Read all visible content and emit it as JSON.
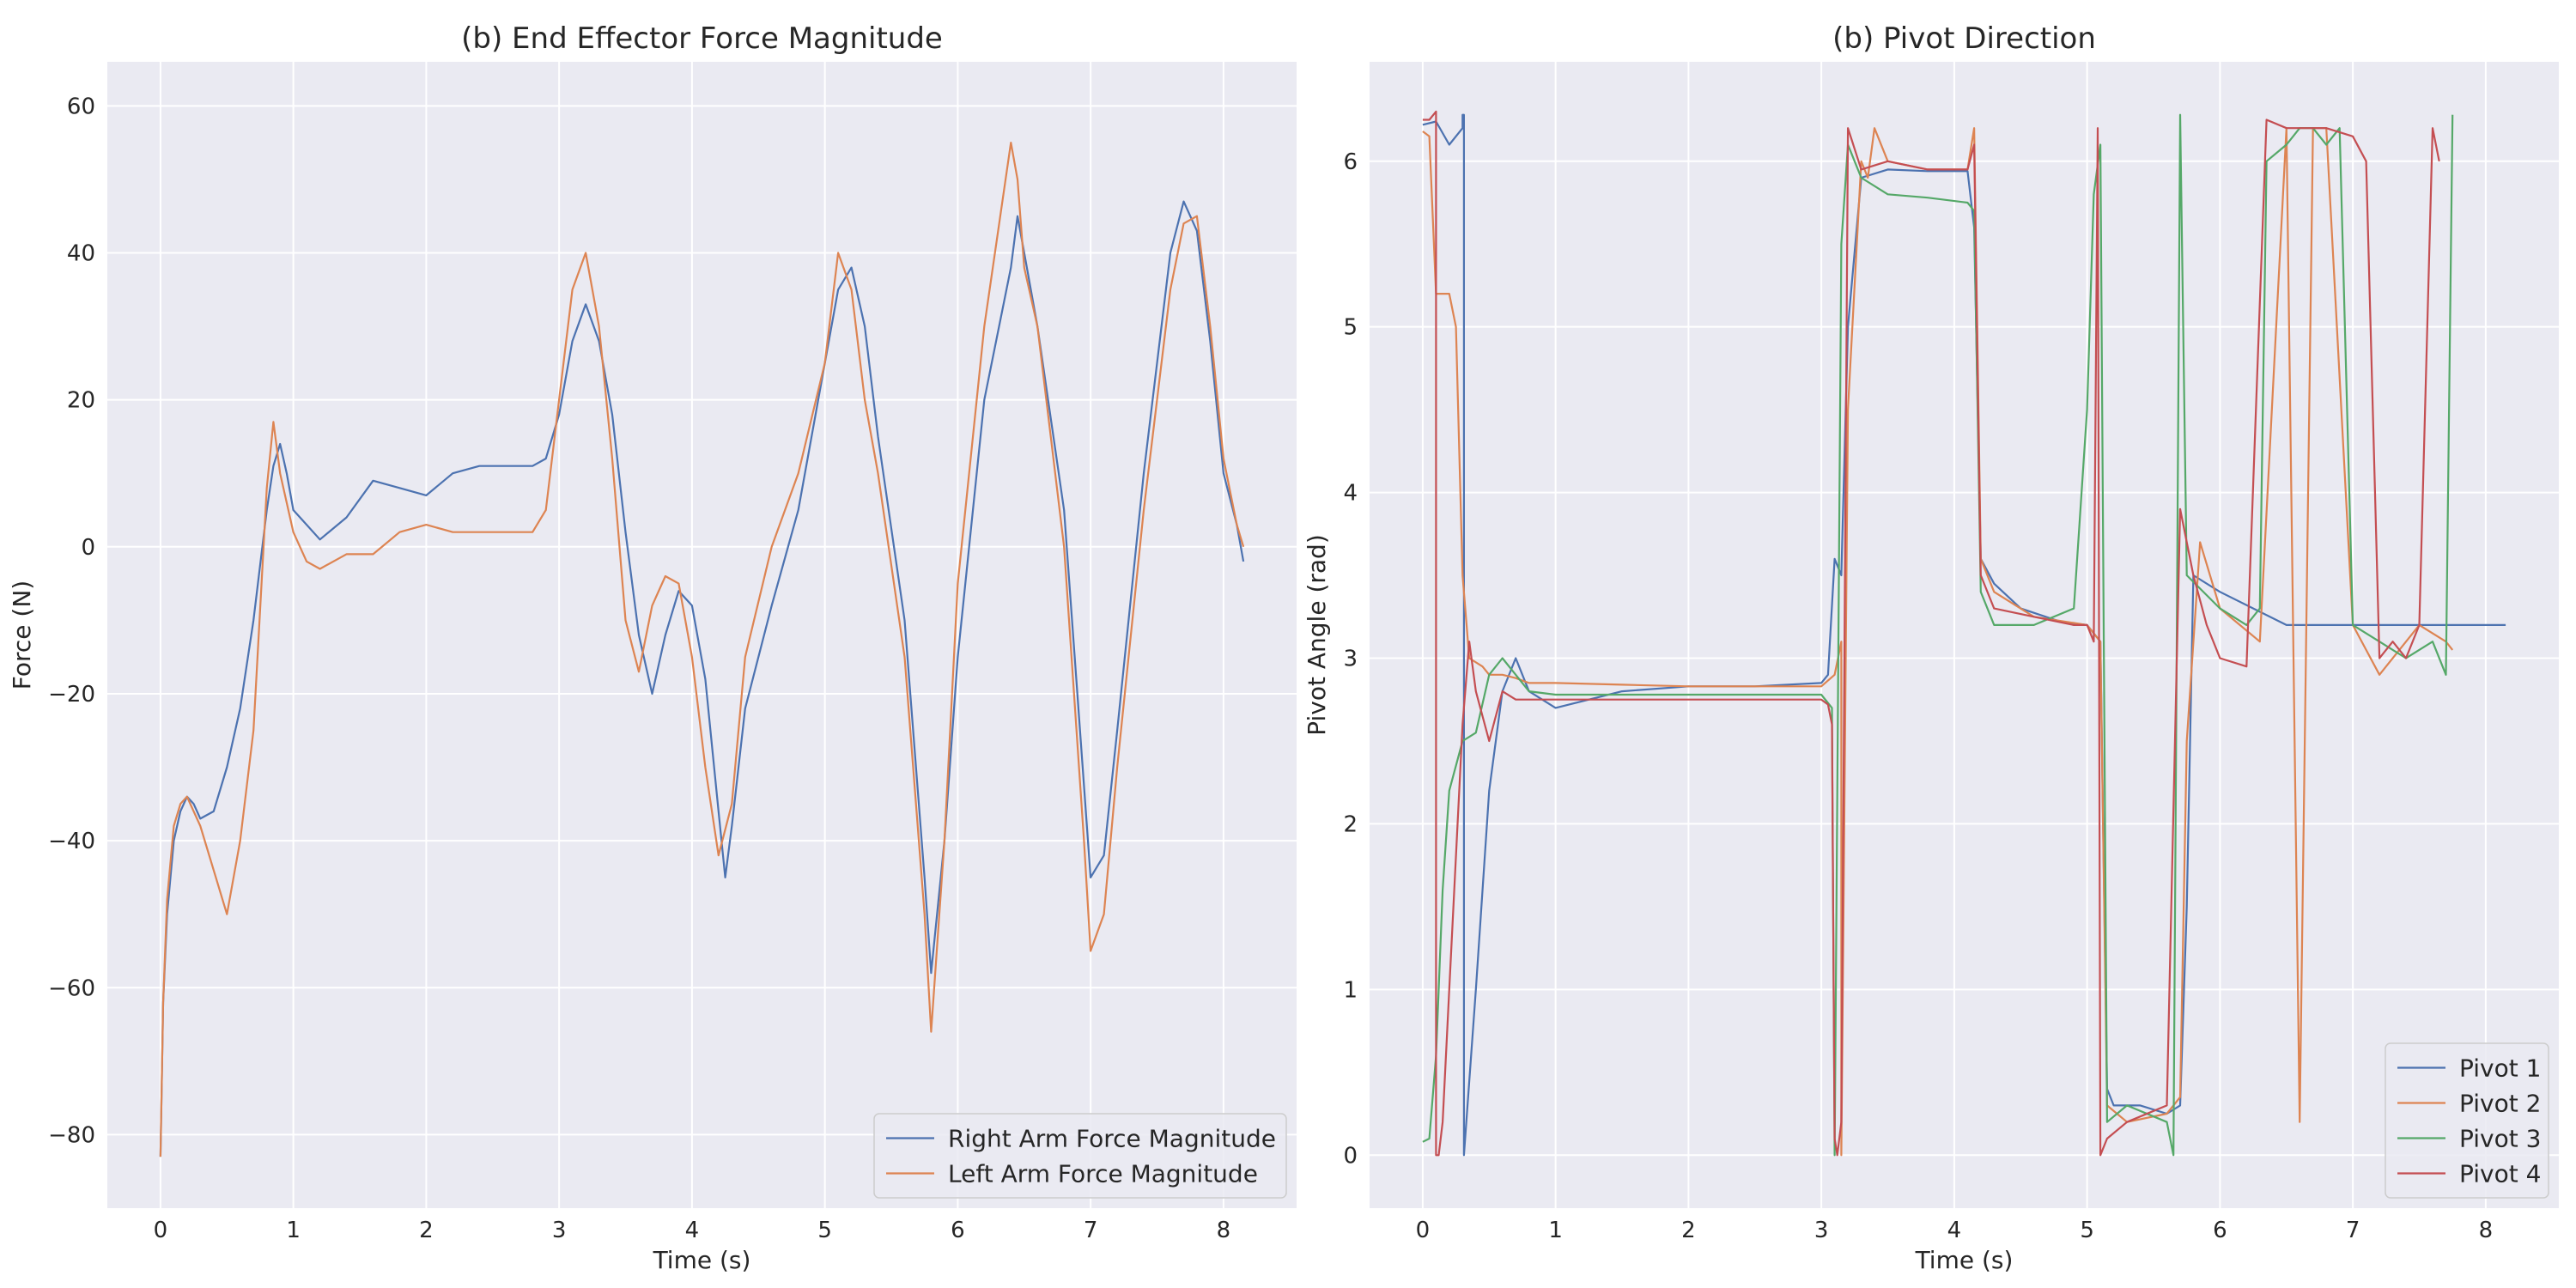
{
  "chart_data": [
    {
      "type": "line",
      "title": "(b) End Effector Force Magnitude",
      "xlabel": "Time (s)",
      "ylabel": "Force (N)",
      "xlim": [
        -0.4,
        8.55
      ],
      "ylim": [
        -90,
        66
      ],
      "xticks": [
        0,
        1,
        2,
        3,
        4,
        5,
        6,
        7,
        8
      ],
      "yticks": [
        -80,
        -60,
        -40,
        -20,
        0,
        20,
        40,
        60
      ],
      "grid": true,
      "legend": "bottom-right",
      "series": [
        {
          "name": "Right Arm Force Magnitude",
          "color": "#4c72b0",
          "x": [
            0,
            0.02,
            0.05,
            0.1,
            0.15,
            0.2,
            0.25,
            0.3,
            0.4,
            0.5,
            0.6,
            0.7,
            0.8,
            0.85,
            0.9,
            0.95,
            1.0,
            1.1,
            1.2,
            1.4,
            1.6,
            1.8,
            2.0,
            2.2,
            2.4,
            2.6,
            2.8,
            2.9,
            3.0,
            3.1,
            3.2,
            3.3,
            3.4,
            3.5,
            3.6,
            3.7,
            3.8,
            3.9,
            4.0,
            4.1,
            4.2,
            4.25,
            4.3,
            4.4,
            4.6,
            4.8,
            5.0,
            5.1,
            5.2,
            5.3,
            5.4,
            5.6,
            5.75,
            5.8,
            5.9,
            6.0,
            6.2,
            6.4,
            6.45,
            6.5,
            6.6,
            6.8,
            6.9,
            7.0,
            7.1,
            7.2,
            7.4,
            7.6,
            7.7,
            7.8,
            7.9,
            8.0,
            8.1,
            8.15
          ],
          "y": [
            -83,
            -62,
            -50,
            -40,
            -36,
            -34,
            -35,
            -37,
            -36,
            -30,
            -22,
            -10,
            5,
            11,
            14,
            10,
            5,
            3,
            1,
            4,
            9,
            8,
            7,
            10,
            11,
            11,
            11,
            12,
            18,
            28,
            33,
            28,
            18,
            2,
            -12,
            -20,
            -12,
            -6,
            -8,
            -18,
            -36,
            -45,
            -38,
            -22,
            -8,
            5,
            25,
            35,
            38,
            30,
            15,
            -10,
            -45,
            -58,
            -40,
            -15,
            20,
            38,
            45,
            40,
            30,
            5,
            -20,
            -45,
            -42,
            -25,
            10,
            40,
            47,
            43,
            28,
            10,
            3,
            -2
          ]
        },
        {
          "name": "Left Arm Force Magnitude",
          "color": "#dd8452",
          "x": [
            0,
            0.02,
            0.05,
            0.1,
            0.15,
            0.2,
            0.3,
            0.4,
            0.5,
            0.6,
            0.7,
            0.8,
            0.85,
            0.9,
            1.0,
            1.1,
            1.2,
            1.4,
            1.6,
            1.8,
            2.0,
            2.2,
            2.4,
            2.6,
            2.8,
            2.9,
            3.0,
            3.1,
            3.2,
            3.3,
            3.4,
            3.5,
            3.6,
            3.7,
            3.8,
            3.9,
            4.0,
            4.1,
            4.2,
            4.3,
            4.4,
            4.6,
            4.8,
            5.0,
            5.1,
            5.2,
            5.3,
            5.4,
            5.6,
            5.75,
            5.8,
            5.9,
            6.0,
            6.2,
            6.4,
            6.45,
            6.5,
            6.6,
            6.8,
            6.95,
            7.0,
            7.1,
            7.2,
            7.4,
            7.6,
            7.7,
            7.8,
            7.9,
            8.0,
            8.1,
            8.15
          ],
          "y": [
            -83,
            -62,
            -48,
            -38,
            -35,
            -34,
            -38,
            -44,
            -50,
            -40,
            -25,
            8,
            17,
            10,
            2,
            -2,
            -3,
            -1,
            -1,
            2,
            3,
            2,
            2,
            2,
            2,
            5,
            20,
            35,
            40,
            30,
            12,
            -10,
            -17,
            -8,
            -4,
            -5,
            -15,
            -30,
            -42,
            -35,
            -15,
            0,
            10,
            25,
            40,
            35,
            20,
            10,
            -15,
            -50,
            -66,
            -40,
            -5,
            30,
            55,
            50,
            38,
            30,
            0,
            -40,
            -55,
            -50,
            -30,
            5,
            35,
            44,
            45,
            30,
            12,
            3,
            0
          ]
        }
      ]
    },
    {
      "type": "line",
      "title": "(b) Pivot Direction",
      "xlabel": "Time (s)",
      "ylabel": "Pivot Angle (rad)",
      "xlim": [
        -0.4,
        8.55
      ],
      "ylim": [
        -0.32,
        6.6
      ],
      "xticks": [
        0,
        1,
        2,
        3,
        4,
        5,
        6,
        7,
        8
      ],
      "yticks": [
        0,
        1,
        2,
        3,
        4,
        5,
        6
      ],
      "grid": true,
      "legend": "bottom-right",
      "series": [
        {
          "name": "Pivot 1",
          "color": "#4c72b0",
          "x": [
            0,
            0.1,
            0.2,
            0.3,
            0.3,
            0.31,
            0.31,
            0.4,
            0.5,
            0.6,
            0.7,
            0.8,
            1.0,
            1.5,
            2.0,
            2.5,
            3.0,
            3.05,
            3.1,
            3.15,
            3.2,
            3.3,
            3.5,
            3.8,
            4.1,
            4.15,
            4.2,
            4.3,
            4.5,
            4.8,
            5.0,
            5.1,
            5.15,
            5.2,
            5.4,
            5.6,
            5.7,
            5.75,
            5.8,
            6.0,
            6.5,
            7.0,
            7.5,
            8.15
          ],
          "y": [
            6.22,
            6.24,
            6.1,
            6.2,
            6.28,
            6.28,
            0.0,
            1.0,
            2.2,
            2.8,
            3.0,
            2.8,
            2.7,
            2.8,
            2.83,
            2.83,
            2.85,
            2.9,
            3.6,
            3.5,
            5.0,
            5.9,
            5.95,
            5.94,
            5.94,
            5.6,
            3.6,
            3.45,
            3.3,
            3.22,
            3.2,
            3.1,
            0.4,
            0.3,
            0.3,
            0.25,
            0.3,
            1.5,
            3.5,
            3.4,
            3.2,
            3.2,
            3.2,
            3.2
          ]
        },
        {
          "name": "Pivot 2",
          "color": "#dd8452",
          "x": [
            0,
            0.05,
            0.1,
            0.15,
            0.2,
            0.25,
            0.3,
            0.35,
            0.45,
            0.5,
            0.6,
            0.7,
            0.8,
            1.0,
            1.5,
            2.0,
            2.5,
            3.0,
            3.1,
            3.15,
            3.15,
            3.2,
            3.3,
            3.35,
            3.4,
            3.5,
            3.8,
            4.1,
            4.15,
            4.2,
            4.3,
            4.6,
            5.0,
            5.1,
            5.15,
            5.3,
            5.6,
            5.7,
            5.75,
            5.85,
            6.0,
            6.3,
            6.5,
            6.6,
            6.7,
            6.8,
            7.0,
            7.2,
            7.5,
            7.7,
            7.75
          ],
          "y": [
            6.18,
            6.15,
            5.2,
            5.2,
            5.2,
            5.0,
            3.5,
            3.0,
            2.95,
            2.9,
            2.9,
            2.88,
            2.85,
            2.85,
            2.84,
            2.83,
            2.83,
            2.83,
            2.9,
            3.1,
            0.0,
            4.5,
            6.0,
            5.9,
            6.2,
            6.0,
            5.95,
            5.95,
            6.2,
            3.6,
            3.4,
            3.25,
            3.2,
            3.1,
            0.3,
            0.2,
            0.25,
            0.35,
            2.5,
            3.7,
            3.3,
            3.1,
            6.2,
            0.2,
            6.2,
            6.2,
            3.2,
            2.9,
            3.2,
            3.1,
            3.05
          ]
        },
        {
          "name": "Pivot 3",
          "color": "#55a868",
          "x": [
            0,
            0.05,
            0.1,
            0.15,
            0.2,
            0.3,
            0.4,
            0.5,
            0.6,
            0.7,
            0.8,
            1.0,
            1.5,
            2.0,
            2.5,
            3.0,
            3.08,
            3.1,
            3.15,
            3.2,
            3.3,
            3.5,
            3.8,
            4.1,
            4.15,
            4.2,
            4.3,
            4.6,
            4.9,
            5.0,
            5.05,
            5.1,
            5.15,
            5.3,
            5.6,
            5.65,
            5.7,
            5.75,
            6.0,
            6.2,
            6.3,
            6.35,
            6.5,
            6.6,
            6.7,
            6.8,
            6.9,
            7.0,
            7.2,
            7.4,
            7.6,
            7.7,
            7.75
          ],
          "y": [
            0.08,
            0.1,
            0.6,
            1.6,
            2.2,
            2.5,
            2.55,
            2.9,
            3.0,
            2.9,
            2.8,
            2.78,
            2.78,
            2.78,
            2.78,
            2.78,
            2.7,
            0.0,
            5.5,
            6.1,
            5.9,
            5.8,
            5.78,
            5.75,
            5.7,
            3.4,
            3.2,
            3.2,
            3.3,
            4.5,
            5.8,
            6.1,
            0.2,
            0.3,
            0.2,
            0.0,
            6.28,
            3.5,
            3.3,
            3.2,
            3.3,
            6.0,
            6.1,
            6.2,
            6.2,
            6.1,
            6.2,
            3.2,
            3.1,
            3.0,
            3.1,
            2.9,
            6.28
          ]
        },
        {
          "name": "Pivot 4",
          "color": "#c44e52",
          "x": [
            0,
            0.05,
            0.1,
            0.1,
            0.12,
            0.15,
            0.2,
            0.3,
            0.35,
            0.4,
            0.5,
            0.6,
            0.7,
            0.8,
            1.0,
            1.5,
            2.0,
            2.5,
            3.0,
            3.05,
            3.08,
            3.1,
            3.12,
            3.15,
            3.2,
            3.3,
            3.5,
            3.8,
            4.1,
            4.15,
            4.2,
            4.3,
            4.6,
            4.9,
            5.0,
            5.05,
            5.08,
            5.1,
            5.15,
            5.3,
            5.6,
            5.7,
            5.8,
            5.9,
            6.0,
            6.2,
            6.35,
            6.5,
            6.6,
            6.8,
            7.0,
            7.1,
            7.2,
            7.3,
            7.4,
            7.5,
            7.6,
            7.65
          ],
          "y": [
            6.25,
            6.25,
            6.3,
            0.0,
            0.0,
            0.2,
            1.0,
            2.6,
            3.1,
            2.8,
            2.5,
            2.8,
            2.75,
            2.75,
            2.75,
            2.75,
            2.75,
            2.75,
            2.75,
            2.72,
            2.6,
            0.1,
            0.0,
            0.2,
            6.2,
            5.95,
            6.0,
            5.95,
            5.95,
            6.1,
            3.5,
            3.3,
            3.25,
            3.2,
            3.2,
            3.1,
            6.2,
            0.0,
            0.1,
            0.2,
            0.3,
            3.9,
            3.5,
            3.2,
            3.0,
            2.95,
            6.25,
            6.2,
            6.2,
            6.2,
            6.15,
            6.0,
            3.0,
            3.1,
            3.0,
            3.2,
            6.2,
            6.0
          ]
        }
      ]
    }
  ]
}
